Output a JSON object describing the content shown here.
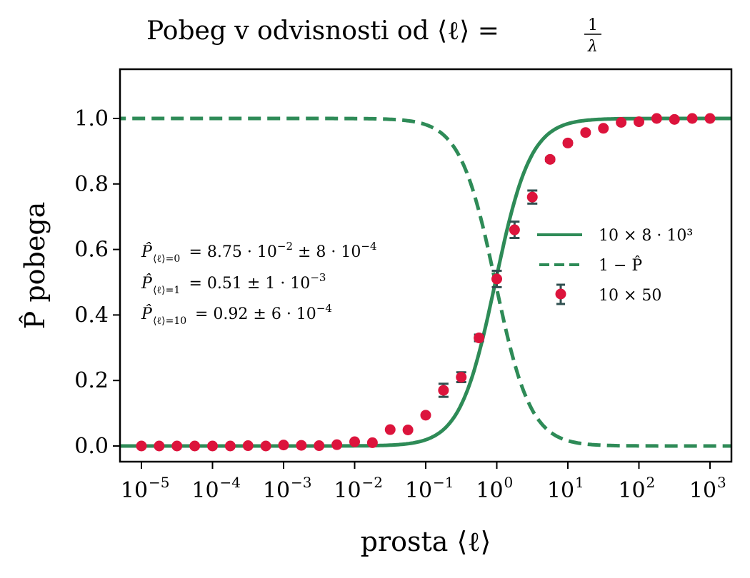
{
  "chart_data": {
    "type": "line",
    "title": "Pobeg v odvisnosti od ⟨ℓ⟩ = 1/λ",
    "title_parts": {
      "text": "Pobeg v odvisnosti od ⟨ℓ⟩ =",
      "frac_num": "1",
      "frac_den": "λ"
    },
    "xlabel": "prosta ⟨ℓ⟩",
    "ylabel": "P̂ pobega",
    "xscale": "log",
    "xlim_log10": [
      -5.3,
      3.3
    ],
    "ylim": [
      -0.05,
      1.15
    ],
    "x_ticks": [
      {
        "base": "10",
        "exp": "−5",
        "log10": -5
      },
      {
        "base": "10",
        "exp": "−4",
        "log10": -4
      },
      {
        "base": "10",
        "exp": "−3",
        "log10": -3
      },
      {
        "base": "10",
        "exp": "−2",
        "log10": -2
      },
      {
        "base": "10",
        "exp": "−1",
        "log10": -1
      },
      {
        "base": "10",
        "exp": "0",
        "log10": 0
      },
      {
        "base": "10",
        "exp": "1",
        "log10": 1
      },
      {
        "base": "10",
        "exp": "2",
        "log10": 2
      },
      {
        "base": "10",
        "exp": "3",
        "log10": 3
      }
    ],
    "y_ticks": [
      {
        "label": "0.0",
        "value": 0.0
      },
      {
        "label": "0.2",
        "value": 0.2
      },
      {
        "label": "0.4",
        "value": 0.4
      },
      {
        "label": "0.6",
        "value": 0.6
      },
      {
        "label": "0.8",
        "value": 0.8
      },
      {
        "label": "1.0",
        "value": 1.0
      }
    ],
    "grid": false,
    "legend_position": "center-right",
    "series": [
      {
        "name": "10 × 8 · 10³",
        "style": "solid",
        "color": "#2e8b57",
        "model": "logistic",
        "midpoint_log10": -0.02,
        "steepness_per_decade": 1.75
      },
      {
        "name": "1 − P̂",
        "style": "dashed",
        "color": "#2e8b57",
        "model": "one_minus_logistic",
        "midpoint_log10": -0.02,
        "steepness_per_decade": 1.75
      },
      {
        "name": "10 × 50",
        "style": "errorbar",
        "color": "#dc143c",
        "errorbar_color": "#2f4f4f",
        "x_log10": [
          -5,
          -4.75,
          -4.5,
          -4.25,
          -4,
          -3.75,
          -3.5,
          -3.25,
          -3,
          -2.75,
          -2.5,
          -2.25,
          -2,
          -1.75,
          -1.5,
          -1.25,
          -1,
          -0.75,
          -0.5,
          -0.25,
          0,
          0.25,
          0.5,
          0.75,
          1,
          1.25,
          1.5,
          1.75,
          2,
          2.25,
          2.5,
          2.75,
          3
        ],
        "y": [
          0.0,
          0.0,
          0.0,
          0.0,
          0.0,
          0.0,
          0.001,
          0.0,
          0.003,
          0.002,
          0.001,
          0.004,
          0.013,
          0.01,
          0.05,
          0.049,
          0.094,
          0.17,
          0.21,
          0.33,
          0.51,
          0.66,
          0.76,
          0.875,
          0.925,
          0.957,
          0.97,
          0.988,
          0.99,
          1.0,
          0.997,
          1.0,
          1.0
        ],
        "yerr": [
          0,
          0,
          0,
          0,
          0,
          0,
          0,
          0,
          0,
          0,
          0,
          0,
          0,
          0,
          0,
          0,
          0,
          0.02,
          0.015,
          0.01,
          0.025,
          0.025,
          0.02,
          0.005,
          0.005,
          0.003,
          0.002,
          0,
          0,
          0,
          0,
          0,
          0
        ]
      }
    ],
    "annotations": [
      {
        "sub": "⟨ℓ⟩=0",
        "text": "= 8.75 · 10",
        "exp1": "−2",
        "mid": " ± 8 · 10",
        "exp2": "−4"
      },
      {
        "sub": "⟨ℓ⟩=1",
        "text": "= 0.51 ± 1 · 10",
        "exp1": "−3",
        "mid": "",
        "exp2": ""
      },
      {
        "sub": "⟨ℓ⟩=10",
        "text": "= 0.92 ± 6 · 10",
        "exp1": "−4",
        "mid": "",
        "exp2": ""
      }
    ]
  }
}
